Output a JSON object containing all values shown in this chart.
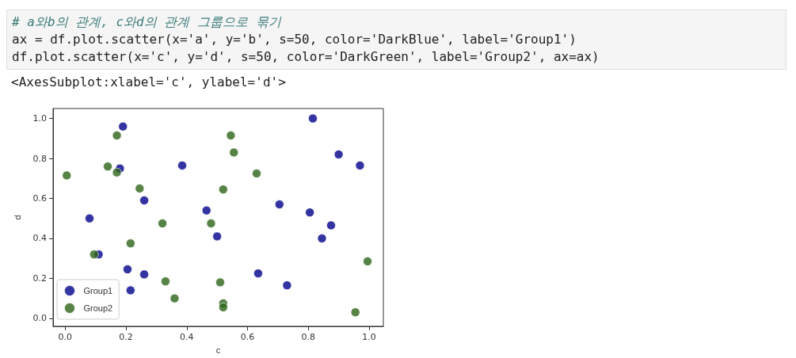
{
  "chart_data": {
    "type": "scatter",
    "xlabel": "c",
    "ylabel": "d",
    "annotations": [
      "# a와b의 관계, c와d의 관계 그룹으로 묶기",
      "ax = df.plot.scatter(x='a', y='b', s=50, color='DarkBlue', label='Group1')",
      "df.plot.scatter(x='c', y='d', s=50, color='DarkGreen', label='Group2', ax=ax)",
      "<AxesSubplot:xlabel='c', ylabel='d'>"
    ],
    "xlim": [
      -0.04,
      1.047
    ],
    "ylim": [
      -0.04,
      1.05
    ],
    "xticks": [
      {
        "value": 0,
        "label": "0.0"
      },
      0.2,
      0.4,
      0.6,
      0.8,
      {
        "value": 1,
        "label": "1.0"
      }
    ],
    "yticks": [
      {
        "value": 0,
        "label": "0.0"
      },
      0.2,
      0.4,
      0.6,
      0.8,
      {
        "value": 1,
        "label": "1.0"
      }
    ],
    "legend": "bottom left",
    "marker": "circle",
    "series": [
      {
        "name": "Group1",
        "color": "#00008b",
        "x": [
          0.19,
          0.18,
          0.385,
          0.26,
          0.08,
          0.465,
          0.5,
          0.11,
          0.205,
          0.26,
          0.215,
          0.815,
          0.9,
          0.97,
          0.705,
          0.805,
          0.875,
          0.845,
          0.635,
          0.73
        ],
        "values": [
          0.96,
          0.75,
          0.765,
          0.59,
          0.5,
          0.54,
          0.41,
          0.32,
          0.245,
          0.22,
          0.14,
          1.0,
          0.82,
          0.765,
          0.57,
          0.53,
          0.465,
          0.4,
          0.225,
          0.165
        ]
      },
      {
        "name": "Group2",
        "color": "#2d6419",
        "x": [
          0.005,
          0.17,
          0.14,
          0.17,
          0.245,
          0.095,
          0.215,
          0.32,
          0.33,
          0.36,
          0.48,
          0.545,
          0.555,
          0.63,
          0.52,
          0.51,
          0.52,
          0.52,
          0.995,
          0.955
        ],
        "values": [
          0.715,
          0.915,
          0.76,
          0.73,
          0.65,
          0.32,
          0.375,
          0.475,
          0.185,
          0.1,
          0.475,
          0.915,
          0.83,
          0.725,
          0.645,
          0.18,
          0.075,
          0.055,
          0.285,
          0.03
        ]
      }
    ]
  }
}
